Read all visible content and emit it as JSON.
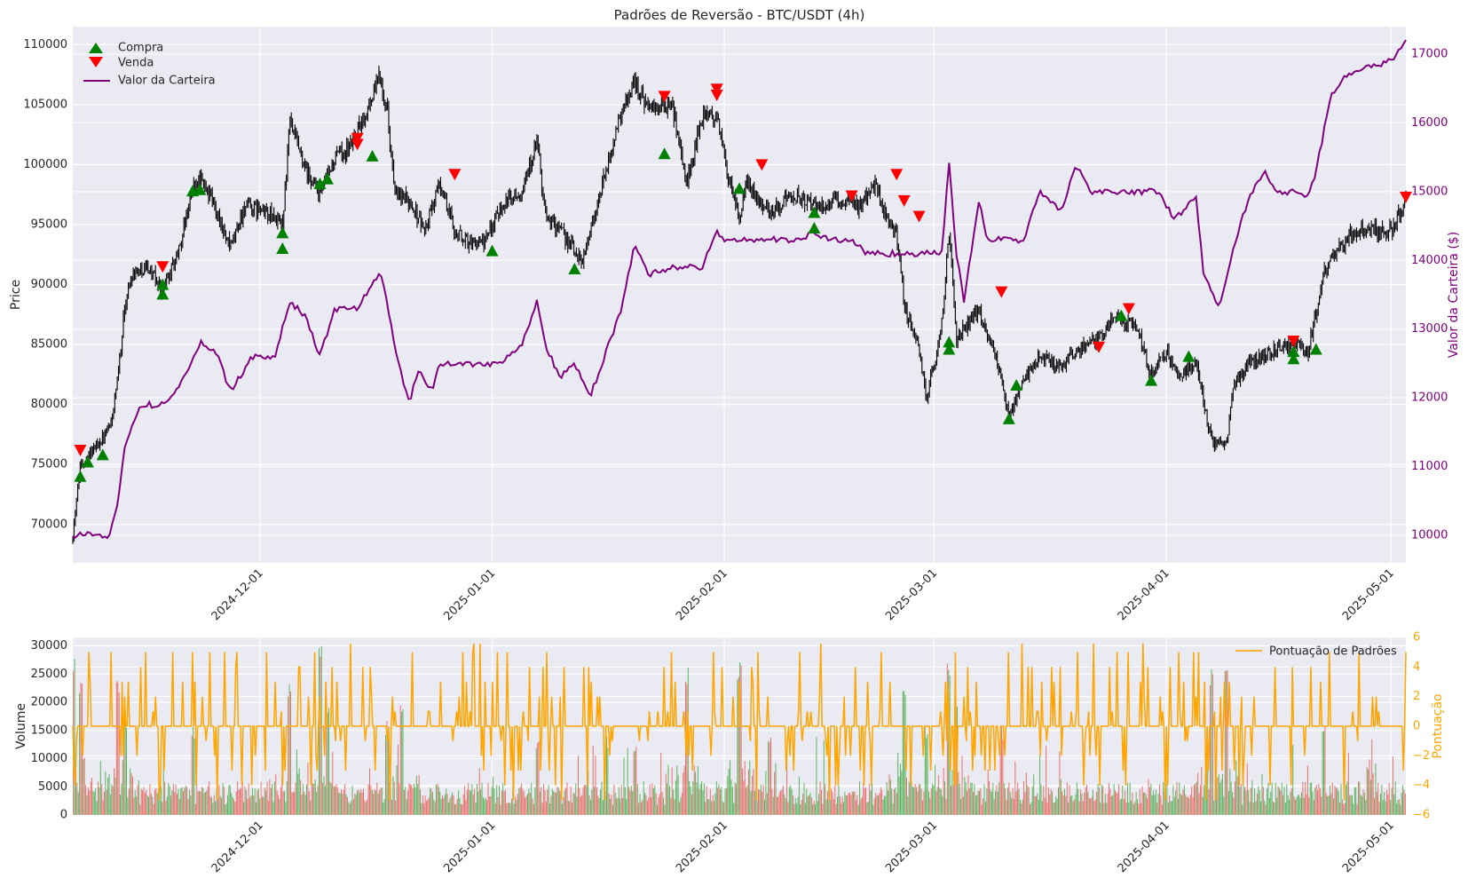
{
  "chart_data": [
    {
      "type": "line",
      "title": "Padrões de Reversão - BTC/USDT (4h)",
      "ylabel": "Price",
      "y2label": "Valor da Carteira ($)",
      "x_ticks": [
        "2024-12-01",
        "2025-01-01",
        "2025-02-01",
        "2025-03-01",
        "2025-04-01",
        "2025-05-01"
      ],
      "y_ticks": [
        70000,
        75000,
        80000,
        85000,
        90000,
        95000,
        100000,
        105000,
        110000
      ],
      "y2_ticks": [
        10000,
        11000,
        12000,
        13000,
        14000,
        15000,
        16000,
        17000
      ],
      "x_range": [
        "2024-11-06",
        "2025-05-03"
      ],
      "ylim": [
        66800,
        111500
      ],
      "y2lim": [
        9600,
        17400
      ],
      "grid": true,
      "legend_position": "top-left",
      "legend": [
        "Compra",
        "Venda",
        "Valor da Carteira"
      ],
      "colors": {
        "price": "#000000",
        "buy": "#008000",
        "sell": "#ff0000",
        "portfolio": "#800080",
        "right_axis": "#800080"
      },
      "price_series": [
        [
          "2024-11-06",
          69000
        ],
        [
          "2024-11-07",
          75000
        ],
        [
          "2024-11-09",
          76500
        ],
        [
          "2024-11-11",
          78000
        ],
        [
          "2024-11-12",
          82000
        ],
        [
          "2024-11-13",
          88500
        ],
        [
          "2024-11-14",
          91000
        ],
        [
          "2024-11-16",
          91500
        ],
        [
          "2024-11-18",
          89500
        ],
        [
          "2024-11-20",
          92500
        ],
        [
          "2024-11-22",
          98000
        ],
        [
          "2024-11-23",
          99000
        ],
        [
          "2024-11-25",
          96500
        ],
        [
          "2024-11-27",
          93000
        ],
        [
          "2024-11-29",
          96500
        ],
        [
          "2024-12-02",
          96000
        ],
        [
          "2024-12-04",
          95000
        ],
        [
          "2024-12-05",
          103500
        ],
        [
          "2024-12-07",
          99500
        ],
        [
          "2024-12-09",
          97500
        ],
        [
          "2024-12-11",
          100500
        ],
        [
          "2024-12-13",
          101500
        ],
        [
          "2024-12-15",
          104000
        ],
        [
          "2024-12-17",
          107500
        ],
        [
          "2024-12-18",
          104500
        ],
        [
          "2024-12-19",
          97500
        ],
        [
          "2024-12-21",
          97000
        ],
        [
          "2024-12-23",
          94500
        ],
        [
          "2024-12-25",
          98500
        ],
        [
          "2024-12-27",
          94500
        ],
        [
          "2024-12-29",
          93500
        ],
        [
          "2024-12-31",
          93500
        ],
        [
          "2025-01-02",
          96500
        ],
        [
          "2025-01-05",
          98000
        ],
        [
          "2025-01-07",
          102000
        ],
        [
          "2025-01-08",
          96000
        ],
        [
          "2025-01-10",
          94500
        ],
        [
          "2025-01-13",
          92000
        ],
        [
          "2025-01-15",
          96500
        ],
        [
          "2025-01-18",
          104000
        ],
        [
          "2025-01-20",
          107000
        ],
        [
          "2025-01-22",
          104500
        ],
        [
          "2025-01-25",
          105000
        ],
        [
          "2025-01-27",
          98500
        ],
        [
          "2025-01-29",
          104000
        ],
        [
          "2025-01-31",
          104000
        ],
        [
          "2025-02-02",
          97500
        ],
        [
          "2025-02-03",
          95500
        ],
        [
          "2025-02-04",
          98500
        ],
        [
          "2025-02-07",
          96000
        ],
        [
          "2025-02-10",
          97500
        ],
        [
          "2025-02-13",
          96500
        ],
        [
          "2025-02-16",
          97000
        ],
        [
          "2025-02-19",
          96500
        ],
        [
          "2025-02-21",
          98500
        ],
        [
          "2025-02-22",
          96500
        ],
        [
          "2025-02-24",
          94000
        ],
        [
          "2025-02-25",
          88500
        ],
        [
          "2025-02-27",
          84500
        ],
        [
          "2025-02-28",
          80500
        ],
        [
          "2025-03-02",
          86500
        ],
        [
          "2025-03-03",
          94500
        ],
        [
          "2025-03-04",
          85500
        ],
        [
          "2025-03-07",
          88000
        ],
        [
          "2025-03-09",
          84500
        ],
        [
          "2025-03-11",
          79000
        ],
        [
          "2025-03-13",
          82000
        ],
        [
          "2025-03-15",
          84000
        ],
        [
          "2025-03-18",
          83000
        ],
        [
          "2025-03-20",
          84500
        ],
        [
          "2025-03-23",
          85500
        ],
        [
          "2025-03-25",
          87500
        ],
        [
          "2025-03-28",
          86500
        ],
        [
          "2025-03-30",
          82500
        ],
        [
          "2025-04-01",
          84500
        ],
        [
          "2025-04-03",
          82500
        ],
        [
          "2025-04-05",
          83500
        ],
        [
          "2025-04-07",
          77000
        ],
        [
          "2025-04-09",
          76500
        ],
        [
          "2025-04-10",
          81500
        ],
        [
          "2025-04-12",
          83500
        ],
        [
          "2025-04-15",
          84500
        ],
        [
          "2025-04-18",
          85000
        ],
        [
          "2025-04-20",
          84500
        ],
        [
          "2025-04-22",
          91000
        ],
        [
          "2025-04-24",
          93000
        ],
        [
          "2025-04-26",
          94500
        ],
        [
          "2025-04-29",
          94500
        ],
        [
          "2025-05-01",
          94500
        ],
        [
          "2025-05-03",
          97000
        ]
      ],
      "portfolio_series": [
        [
          "2024-11-06",
          10000
        ],
        [
          "2024-11-09",
          10020
        ],
        [
          "2024-11-11",
          10000
        ],
        [
          "2024-11-12",
          10500
        ],
        [
          "2024-11-13",
          11300
        ],
        [
          "2024-11-15",
          11900
        ],
        [
          "2024-11-18",
          11900
        ],
        [
          "2024-11-21",
          12300
        ],
        [
          "2024-11-23",
          12800
        ],
        [
          "2024-11-25",
          12700
        ],
        [
          "2024-11-27",
          12100
        ],
        [
          "2024-11-30",
          12600
        ],
        [
          "2024-12-03",
          12600
        ],
        [
          "2024-12-05",
          13400
        ],
        [
          "2024-12-07",
          13200
        ],
        [
          "2024-12-09",
          12600
        ],
        [
          "2024-12-11",
          13300
        ],
        [
          "2024-12-14",
          13300
        ],
        [
          "2024-12-17",
          13800
        ],
        [
          "2024-12-18",
          13400
        ],
        [
          "2024-12-19",
          12700
        ],
        [
          "2024-12-21",
          11900
        ],
        [
          "2024-12-22",
          12400
        ],
        [
          "2024-12-24",
          12100
        ],
        [
          "2024-12-25",
          12500
        ],
        [
          "2025-01-02",
          12500
        ],
        [
          "2025-01-05",
          12800
        ],
        [
          "2025-01-07",
          13400
        ],
        [
          "2025-01-08",
          12800
        ],
        [
          "2025-01-10",
          12300
        ],
        [
          "2025-01-12",
          12500
        ],
        [
          "2025-01-14",
          12000
        ],
        [
          "2025-01-16",
          12600
        ],
        [
          "2025-01-18",
          13200
        ],
        [
          "2025-01-20",
          14200
        ],
        [
          "2025-01-22",
          13800
        ],
        [
          "2025-01-25",
          13900
        ],
        [
          "2025-01-29",
          13900
        ],
        [
          "2025-01-31",
          14400
        ],
        [
          "2025-02-01",
          14300
        ],
        [
          "2025-02-11",
          14300
        ],
        [
          "2025-02-13",
          14400
        ],
        [
          "2025-02-15",
          14300
        ],
        [
          "2025-02-18",
          14300
        ],
        [
          "2025-02-20",
          14100
        ],
        [
          "2025-03-02",
          14100
        ],
        [
          "2025-03-03",
          15400
        ],
        [
          "2025-03-04",
          14100
        ],
        [
          "2025-03-05",
          13400
        ],
        [
          "2025-03-07",
          14900
        ],
        [
          "2025-03-08",
          14300
        ],
        [
          "2025-03-13",
          14300
        ],
        [
          "2025-03-15",
          15000
        ],
        [
          "2025-03-18",
          14700
        ],
        [
          "2025-03-20",
          15400
        ],
        [
          "2025-03-22",
          15000
        ],
        [
          "2025-03-31",
          15000
        ],
        [
          "2025-04-02",
          14600
        ],
        [
          "2025-04-05",
          14900
        ],
        [
          "2025-04-06",
          13800
        ],
        [
          "2025-04-08",
          13300
        ],
        [
          "2025-04-10",
          14200
        ],
        [
          "2025-04-12",
          14900
        ],
        [
          "2025-04-14",
          15300
        ],
        [
          "2025-04-16",
          15000
        ],
        [
          "2025-04-18",
          15000
        ],
        [
          "2025-04-20",
          14900
        ],
        [
          "2025-04-21",
          15300
        ],
        [
          "2025-04-23",
          16400
        ],
        [
          "2025-04-25",
          16700
        ],
        [
          "2025-04-28",
          16800
        ],
        [
          "2025-05-01",
          16900
        ],
        [
          "2025-05-03",
          17200
        ]
      ],
      "buy_signals": [
        [
          "2024-11-07",
          74000
        ],
        [
          "2024-11-08",
          75200
        ],
        [
          "2024-11-10",
          75800
        ],
        [
          "2024-11-18",
          89200
        ],
        [
          "2024-11-18",
          90000
        ],
        [
          "2024-11-22",
          97800
        ],
        [
          "2024-11-23",
          97900
        ],
        [
          "2024-12-04",
          93000
        ],
        [
          "2024-12-04",
          94300
        ],
        [
          "2024-12-09",
          98400
        ],
        [
          "2024-12-10",
          98800
        ],
        [
          "2024-12-16",
          100700
        ],
        [
          "2025-01-01",
          92800
        ],
        [
          "2025-01-12",
          91300
        ],
        [
          "2025-01-24",
          100900
        ],
        [
          "2025-02-03",
          98000
        ],
        [
          "2025-02-13",
          94700
        ],
        [
          "2025-02-13",
          96000
        ],
        [
          "2025-03-03",
          84600
        ],
        [
          "2025-03-03",
          85200
        ],
        [
          "2025-03-11",
          78800
        ],
        [
          "2025-03-12",
          81600
        ],
        [
          "2025-03-26",
          87400
        ],
        [
          "2025-03-30",
          82000
        ],
        [
          "2025-04-04",
          84000
        ],
        [
          "2025-04-18",
          83800
        ],
        [
          "2025-04-18",
          84400
        ],
        [
          "2025-04-21",
          84600
        ]
      ],
      "sell_signals": [
        [
          "2024-11-07",
          76200
        ],
        [
          "2024-11-18",
          91500
        ],
        [
          "2024-12-14",
          101700
        ],
        [
          "2024-12-14",
          102200
        ],
        [
          "2024-12-27",
          99200
        ],
        [
          "2025-01-24",
          105700
        ],
        [
          "2025-01-31",
          106300
        ],
        [
          "2025-01-31",
          105800
        ],
        [
          "2025-02-06",
          100000
        ],
        [
          "2025-02-18",
          97400
        ],
        [
          "2025-02-24",
          99200
        ],
        [
          "2025-02-25",
          97000
        ],
        [
          "2025-02-27",
          95700
        ],
        [
          "2025-03-10",
          89400
        ],
        [
          "2025-03-23",
          84800
        ],
        [
          "2025-03-27",
          88000
        ],
        [
          "2025-04-18",
          85300
        ],
        [
          "2025-05-03",
          97300
        ]
      ]
    },
    {
      "type": "bar",
      "ylabel": "Volume",
      "y2label": "Pontuação",
      "legend": [
        "Pontuação de Padrões"
      ],
      "legend_position": "top-right",
      "grid": true,
      "x_ticks": [
        "2024-12-01",
        "2025-01-01",
        "2025-02-01",
        "2025-03-01",
        "2025-04-01",
        "2025-05-01"
      ],
      "y_ticks": [
        0,
        5000,
        10000,
        15000,
        20000,
        25000,
        30000
      ],
      "y2_ticks": [
        -6,
        -4,
        -2,
        0,
        2,
        4,
        6
      ],
      "ylim": [
        0,
        31500
      ],
      "y2lim": [
        -6,
        6
      ],
      "colors": {
        "up": "#2ca02c",
        "down": "#e8453c",
        "score": "#ffa500",
        "right_axis": "#ffa500"
      },
      "volume_sample_peaks": [
        [
          "2024-11-06",
          29500
        ],
        [
          "2024-11-07",
          26000
        ],
        [
          "2024-11-12",
          25000
        ],
        [
          "2024-11-13",
          19000
        ],
        [
          "2024-11-22",
          16000
        ],
        [
          "2024-12-05",
          24000
        ],
        [
          "2024-12-09",
          30000
        ],
        [
          "2024-12-10",
          22000
        ],
        [
          "2024-12-18",
          17000
        ],
        [
          "2024-12-20",
          20000
        ],
        [
          "2025-01-07",
          14000
        ],
        [
          "2025-01-20",
          13000
        ],
        [
          "2025-01-27",
          28000
        ],
        [
          "2025-02-03",
          29000
        ],
        [
          "2025-02-07",
          15000
        ],
        [
          "2025-02-25",
          22500
        ],
        [
          "2025-02-28",
          16000
        ],
        [
          "2025-03-03",
          30500
        ],
        [
          "2025-03-04",
          21000
        ],
        [
          "2025-03-10",
          16000
        ],
        [
          "2025-04-07",
          27500
        ],
        [
          "2025-04-09",
          26000
        ],
        [
          "2025-04-22",
          18000
        ],
        [
          "2025-04-28",
          10000
        ]
      ],
      "score_series_note_free": true
    }
  ]
}
